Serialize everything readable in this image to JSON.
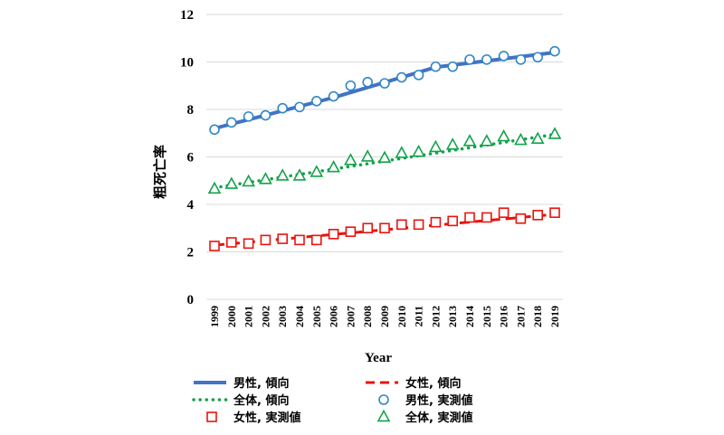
{
  "chart_data": {
    "type": "line",
    "xlabel": "Year",
    "ylabel": "粗死亡率",
    "ylim": [
      0,
      12
    ],
    "yticks": [
      0,
      2,
      4,
      6,
      8,
      10,
      12
    ],
    "grid": "horizontal",
    "legend_position": "bottom",
    "x": [
      1999,
      2000,
      2001,
      2002,
      2003,
      2004,
      2005,
      2006,
      2007,
      2008,
      2009,
      2010,
      2011,
      2012,
      2013,
      2014,
      2015,
      2016,
      2017,
      2018,
      2019
    ],
    "x_labels": [
      "1999",
      "2000",
      "2001",
      "2002",
      "2003",
      "2004",
      "2005",
      "2006",
      "2007",
      "2008",
      "2009",
      "2010",
      "2011",
      "2012",
      "2013",
      "2014",
      "2015",
      "2016",
      "2017",
      "2018",
      "2019"
    ],
    "series": [
      {
        "name": "男性, 傾向",
        "kind": "trend",
        "style": "solid",
        "color": "#4472C4",
        "segments": [
          {
            "x": [
              1999,
              2006
            ],
            "y": [
              7.2,
              8.5
            ]
          },
          {
            "x": [
              2006,
              2012
            ],
            "y": [
              8.5,
              9.78
            ]
          },
          {
            "x": [
              2012,
              2019
            ],
            "y": [
              9.78,
              10.4
            ]
          }
        ]
      },
      {
        "name": "女性, 傾向",
        "kind": "trend",
        "style": "dash",
        "color": "#E8140F",
        "segments": [
          {
            "x": [
              1999,
              2019
            ],
            "y": [
              2.28,
              3.58
            ]
          }
        ]
      },
      {
        "name": "全体, 傾向",
        "kind": "trend",
        "style": "dot",
        "color": "#13A34A",
        "segments": [
          {
            "x": [
              1999,
              2019
            ],
            "y": [
              4.7,
              6.95
            ]
          }
        ]
      },
      {
        "name": "男性, 実測値",
        "kind": "observed",
        "marker": "circle",
        "color": "#2E86C8",
        "values": [
          7.15,
          7.45,
          7.7,
          7.75,
          8.05,
          8.1,
          8.35,
          8.55,
          9.0,
          9.15,
          9.1,
          9.35,
          9.45,
          9.8,
          9.8,
          10.1,
          10.1,
          10.25,
          10.1,
          10.2,
          10.45
        ]
      },
      {
        "name": "女性, 実測値",
        "kind": "observed",
        "marker": "square",
        "color": "#E8140F",
        "values": [
          2.25,
          2.4,
          2.35,
          2.5,
          2.55,
          2.5,
          2.5,
          2.75,
          2.85,
          3.0,
          3.0,
          3.15,
          3.15,
          3.25,
          3.3,
          3.45,
          3.45,
          3.65,
          3.4,
          3.55,
          3.65
        ]
      },
      {
        "name": "全体, 実測値",
        "kind": "observed",
        "marker": "triangle",
        "color": "#13A34A",
        "values": [
          4.65,
          4.85,
          4.95,
          5.05,
          5.2,
          5.2,
          5.35,
          5.55,
          5.85,
          6.0,
          5.95,
          6.15,
          6.2,
          6.4,
          6.5,
          6.65,
          6.65,
          6.85,
          6.7,
          6.75,
          6.95
        ]
      }
    ],
    "legend_order": [
      "男性, 傾向",
      "女性, 傾向",
      "全体, 傾向",
      "男性, 実測値",
      "女性, 実測値",
      "全体, 実測値"
    ]
  }
}
